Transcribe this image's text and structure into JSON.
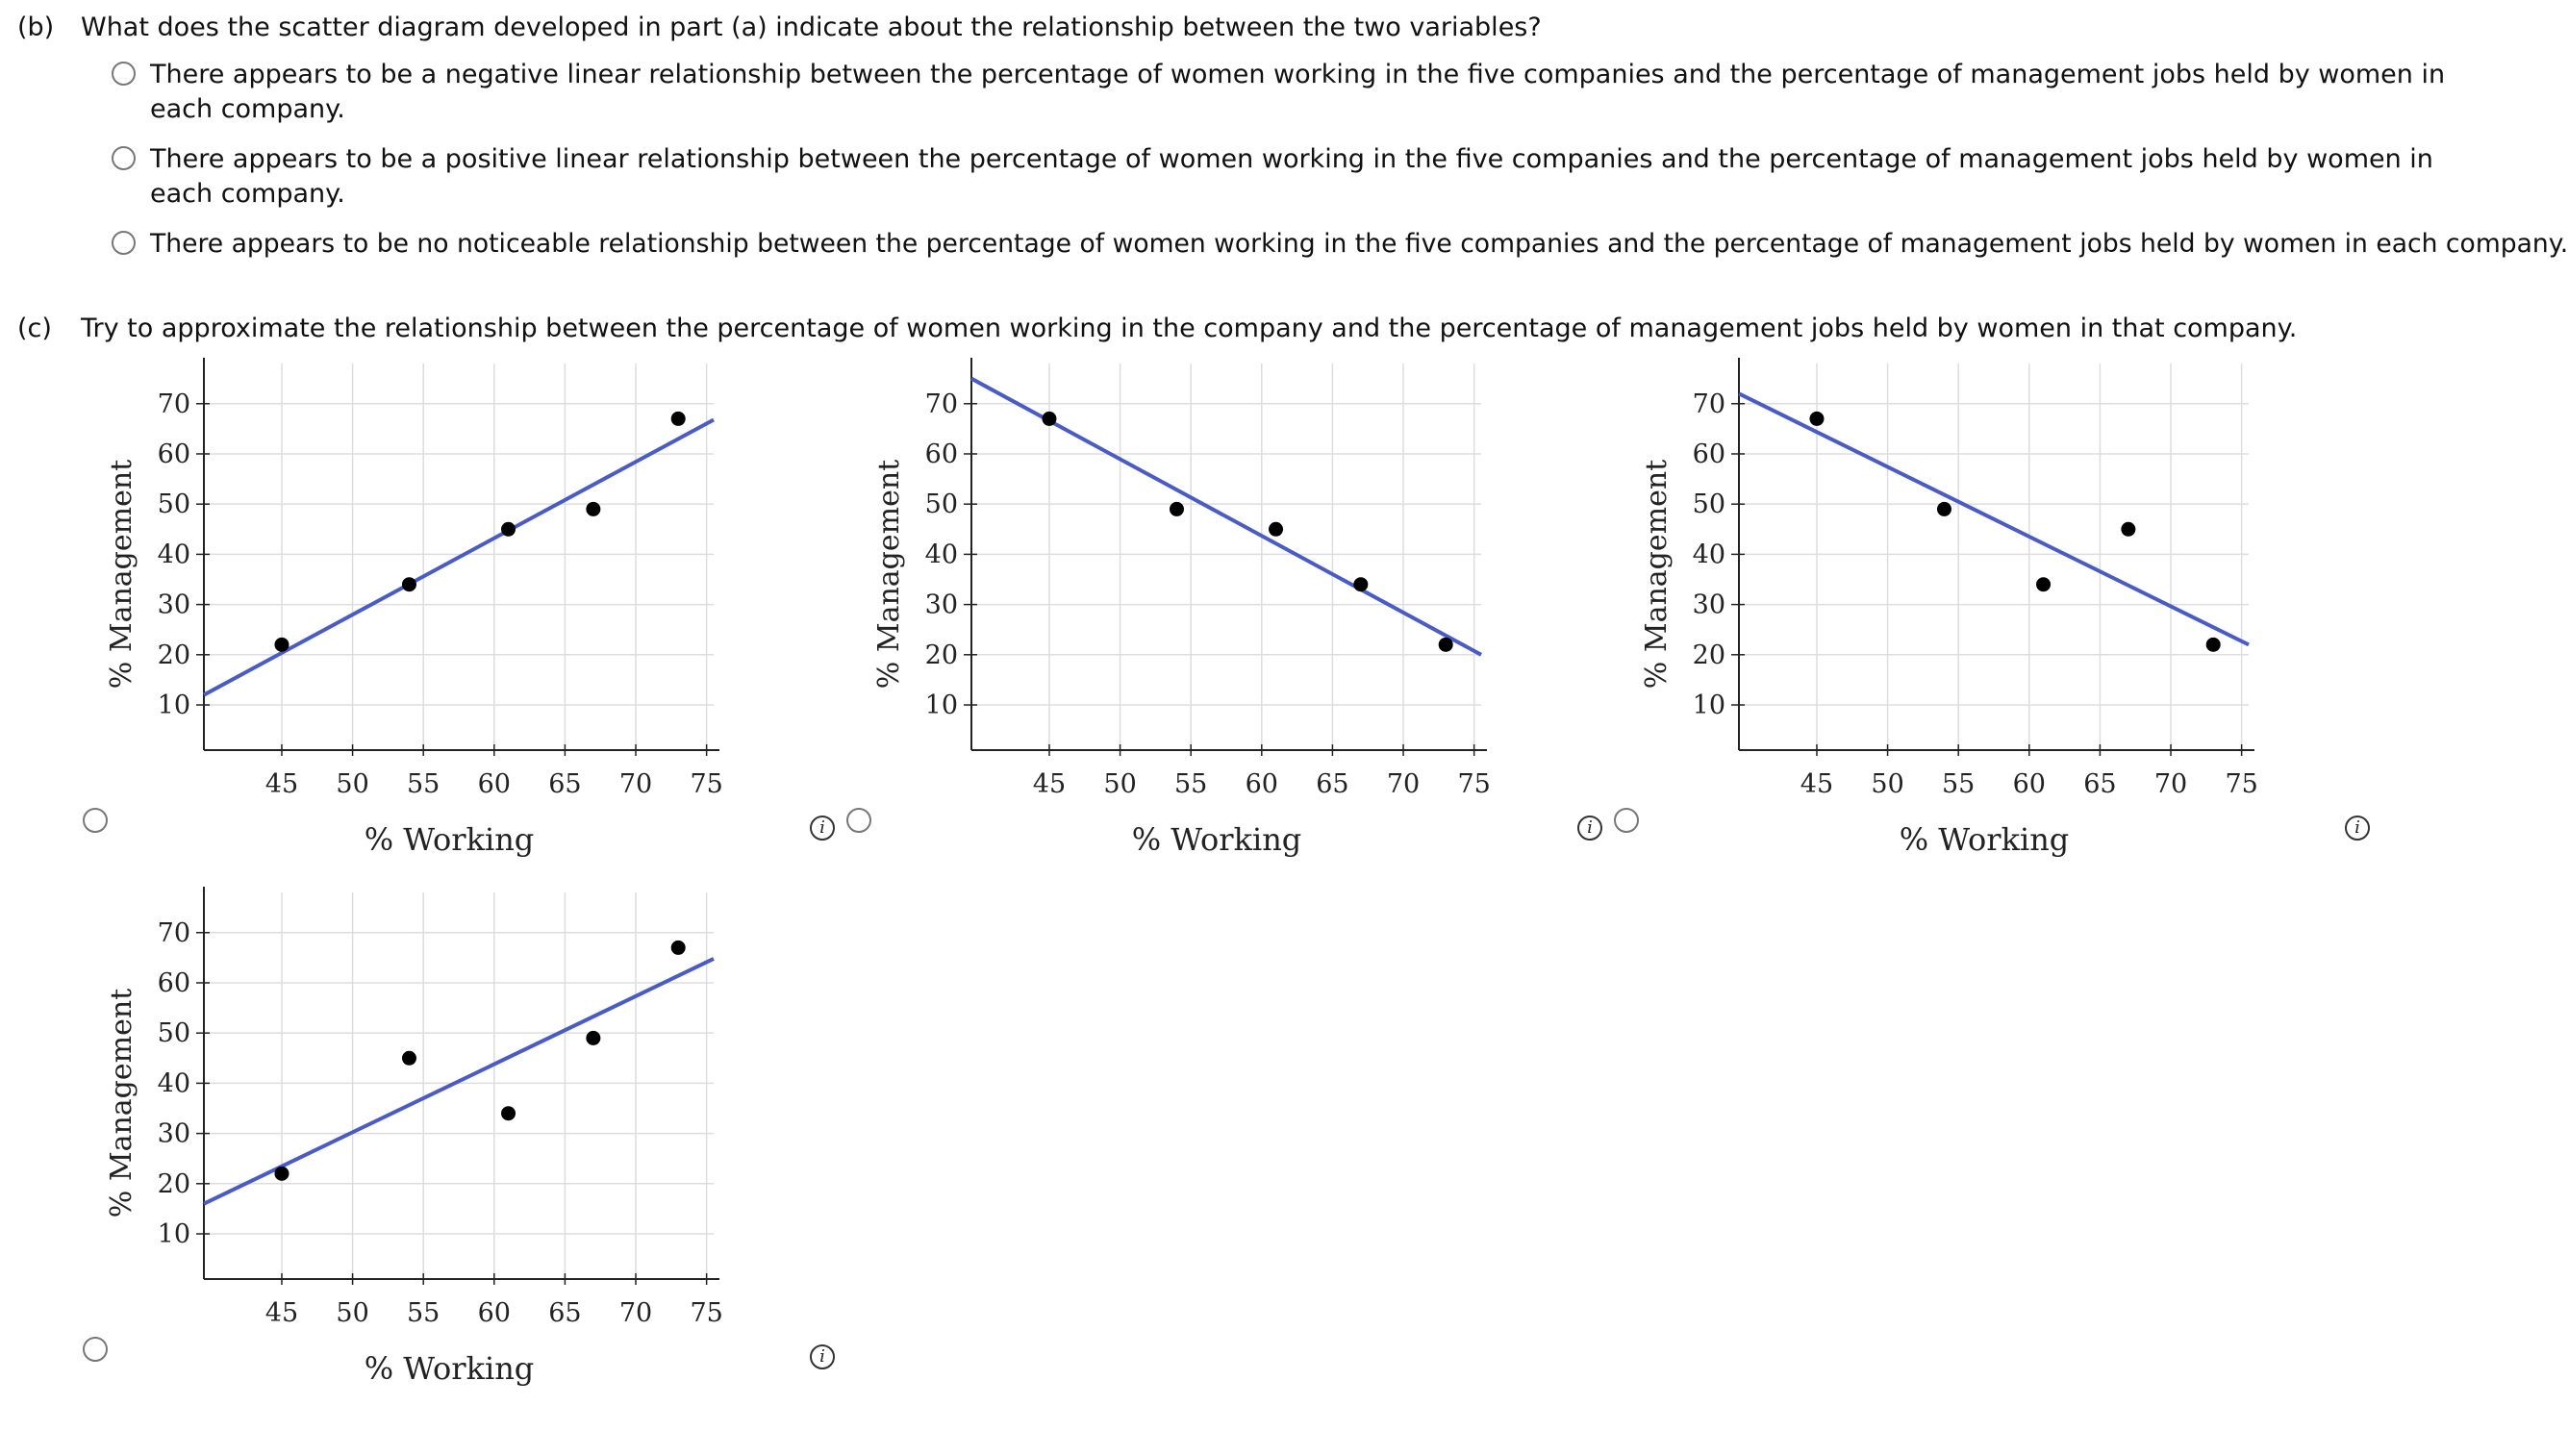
{
  "part_b": {
    "label": "(b)",
    "question": "What does the scatter diagram developed in part (a) indicate about the relationship between the two variables?",
    "options": [
      "There appears to be a negative linear relationship between the percentage of women working in the five companies and the percentage of management jobs held by women in each company.",
      "There appears to be a positive linear relationship between the percentage of women working in the five companies and the percentage of management jobs held by women in each company.",
      "There appears to be no noticeable relationship between the percentage of women working in the five companies and the percentage of management jobs held by women in each company."
    ]
  },
  "part_c": {
    "label": "(c)",
    "question": "Try to approximate the relationship between the percentage of women working in the company and the percentage of management jobs held by women in that company.",
    "info_glyph": "i"
  },
  "chart_data": [
    {
      "type": "scatter",
      "xlabel": "% Working",
      "ylabel": "% Management",
      "xticks": [
        45,
        50,
        55,
        60,
        65,
        70,
        75
      ],
      "yticks": [
        10,
        20,
        30,
        40,
        50,
        60,
        70
      ],
      "xlim": [
        39.5,
        75.5
      ],
      "ylim": [
        1,
        78
      ],
      "grid": true,
      "points": [
        [
          45,
          22
        ],
        [
          54,
          34
        ],
        [
          61,
          45
        ],
        [
          67,
          49
        ],
        [
          73,
          67
        ]
      ],
      "line": {
        "x": [
          39.5,
          75.5
        ],
        "y": [
          12,
          66.8
        ],
        "color": "#4a5cc4"
      }
    },
    {
      "type": "scatter",
      "xlabel": "% Working",
      "ylabel": "% Management",
      "xticks": [
        45,
        50,
        55,
        60,
        65,
        70,
        75
      ],
      "yticks": [
        10,
        20,
        30,
        40,
        50,
        60,
        70
      ],
      "xlim": [
        39.5,
        75.5
      ],
      "ylim": [
        1,
        78
      ],
      "grid": true,
      "points": [
        [
          45,
          67
        ],
        [
          54,
          49
        ],
        [
          61,
          45
        ],
        [
          67,
          34
        ],
        [
          73,
          22
        ]
      ],
      "line": {
        "x": [
          39.5,
          75.5
        ],
        "y": [
          75,
          20
        ],
        "color": "#4a5cc4"
      }
    },
    {
      "type": "scatter",
      "xlabel": "% Working",
      "ylabel": "% Management",
      "xticks": [
        45,
        50,
        55,
        60,
        65,
        70,
        75
      ],
      "yticks": [
        10,
        20,
        30,
        40,
        50,
        60,
        70
      ],
      "xlim": [
        39.5,
        75.5
      ],
      "ylim": [
        1,
        78
      ],
      "grid": true,
      "points": [
        [
          45,
          67
        ],
        [
          54,
          49
        ],
        [
          61,
          34
        ],
        [
          67,
          45
        ],
        [
          73,
          22
        ]
      ],
      "line": {
        "x": [
          39.5,
          75.5
        ],
        "y": [
          72,
          22
        ],
        "color": "#4a5cc4"
      }
    },
    {
      "type": "scatter",
      "xlabel": "% Working",
      "ylabel": "% Management",
      "xticks": [
        45,
        50,
        55,
        60,
        65,
        70,
        75
      ],
      "yticks": [
        10,
        20,
        30,
        40,
        50,
        60,
        70
      ],
      "xlim": [
        39.5,
        75.5
      ],
      "ylim": [
        1,
        78
      ],
      "grid": true,
      "points": [
        [
          45,
          22
        ],
        [
          54,
          45
        ],
        [
          61,
          34
        ],
        [
          67,
          49
        ],
        [
          73,
          67
        ]
      ],
      "line": {
        "x": [
          39.5,
          75.5
        ],
        "y": [
          16,
          64.8
        ],
        "color": "#4a5cc4"
      }
    }
  ]
}
